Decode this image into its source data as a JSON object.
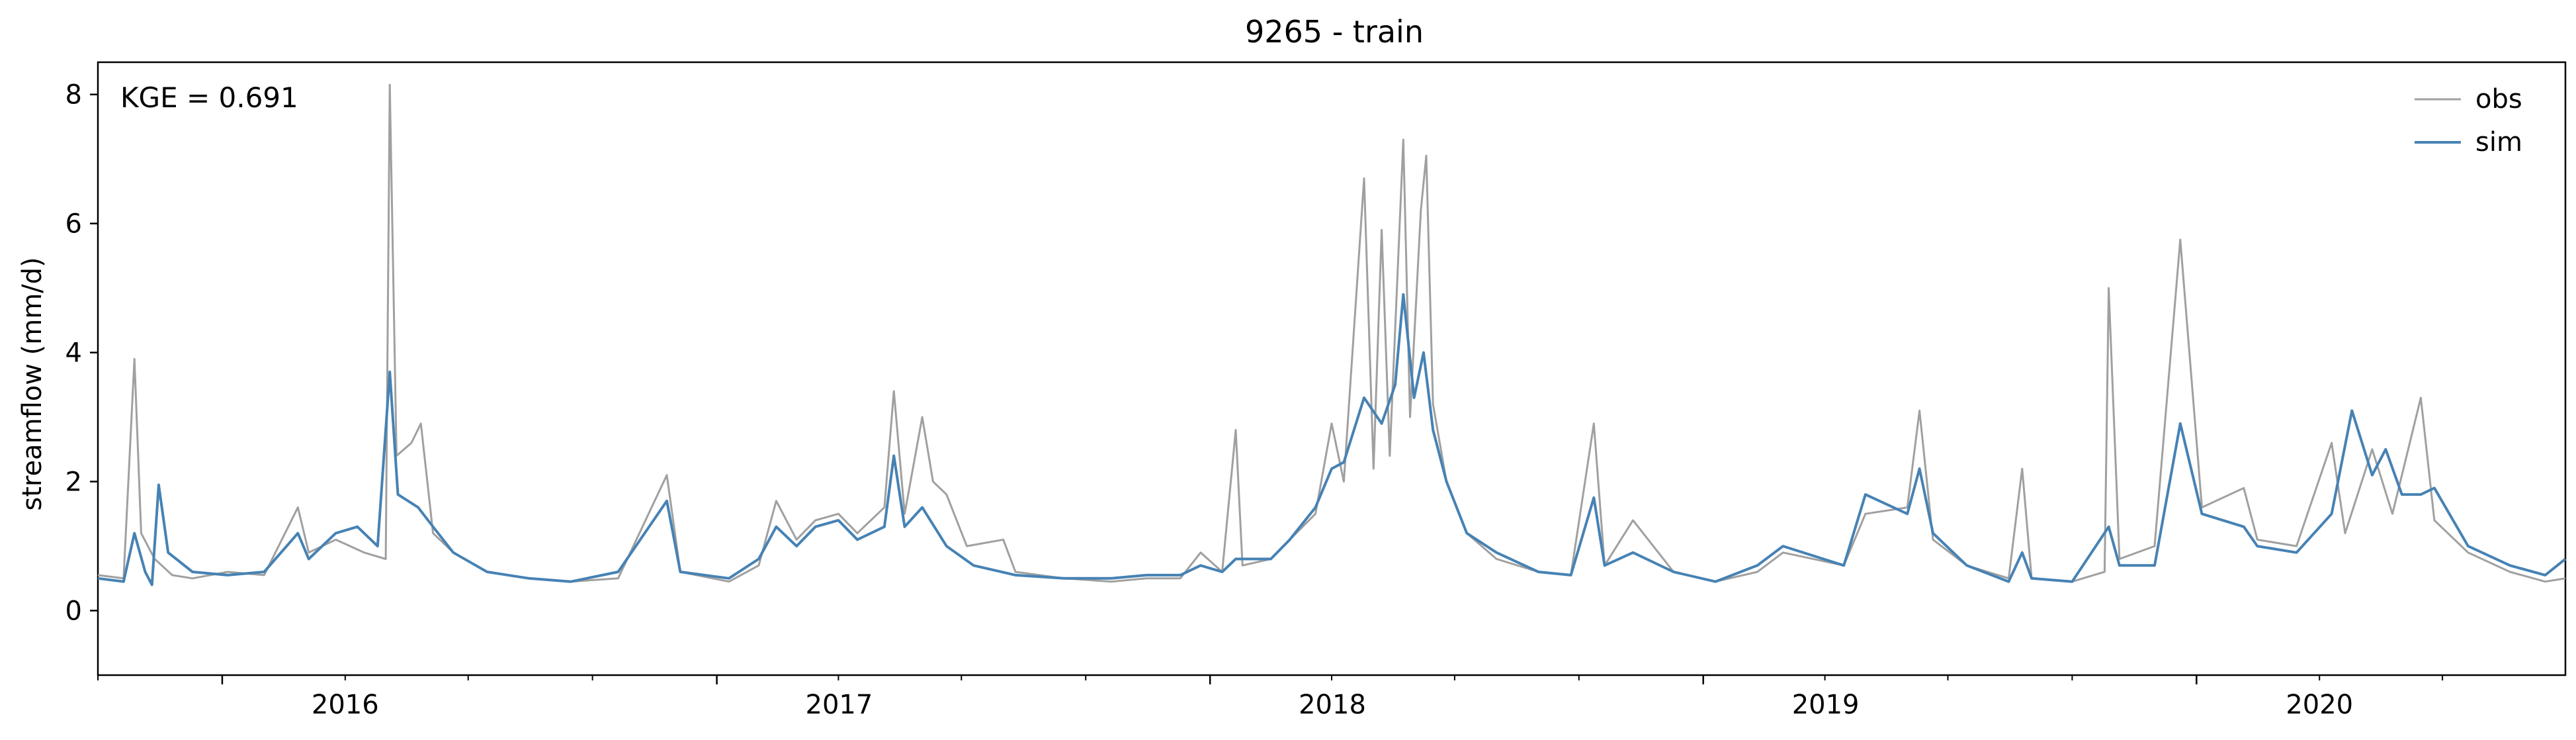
{
  "chart_data": {
    "type": "line",
    "title": "9265 - train",
    "xlabel": "",
    "ylabel": "streamflow (mm/d)",
    "annotation": "KGE = 0.691",
    "x_ticks": [
      "2016",
      "2017",
      "2018",
      "2019",
      "2020"
    ],
    "y_ticks": [
      "0",
      "2",
      "4",
      "6",
      "8"
    ],
    "xlim": [
      "2015-10-01",
      "2020-09-30"
    ],
    "ylim": [
      -1.0,
      8.5
    ],
    "grid": false,
    "legend_position": "top-right",
    "series": [
      {
        "name": "obs",
        "color": "#a0a0a0",
        "points": [
          [
            "2015-10-01",
            0.55
          ],
          [
            "2015-10-20",
            0.5
          ],
          [
            "2015-10-28",
            3.9
          ],
          [
            "2015-11-02",
            1.2
          ],
          [
            "2015-11-12",
            0.8
          ],
          [
            "2015-11-25",
            0.55
          ],
          [
            "2015-12-10",
            0.5
          ],
          [
            "2016-01-05",
            0.6
          ],
          [
            "2016-02-01",
            0.55
          ],
          [
            "2016-02-26",
            1.6
          ],
          [
            "2016-03-05",
            0.9
          ],
          [
            "2016-03-25",
            1.1
          ],
          [
            "2016-04-15",
            0.9
          ],
          [
            "2016-05-01",
            0.8
          ],
          [
            "2016-05-04",
            8.15
          ],
          [
            "2016-05-09",
            2.4
          ],
          [
            "2016-05-20",
            2.6
          ],
          [
            "2016-05-27",
            2.9
          ],
          [
            "2016-06-05",
            1.2
          ],
          [
            "2016-06-20",
            0.9
          ],
          [
            "2016-07-15",
            0.6
          ],
          [
            "2016-08-15",
            0.5
          ],
          [
            "2016-09-15",
            0.45
          ],
          [
            "2016-10-20",
            0.5
          ],
          [
            "2016-11-25",
            2.1
          ],
          [
            "2016-12-05",
            0.6
          ],
          [
            "2017-01-10",
            0.45
          ],
          [
            "2017-02-01",
            0.7
          ],
          [
            "2017-02-14",
            1.7
          ],
          [
            "2017-03-01",
            1.1
          ],
          [
            "2017-03-15",
            1.4
          ],
          [
            "2017-04-01",
            1.5
          ],
          [
            "2017-04-15",
            1.2
          ],
          [
            "2017-05-05",
            1.6
          ],
          [
            "2017-05-12",
            3.4
          ],
          [
            "2017-05-20",
            1.5
          ],
          [
            "2017-06-02",
            3.0
          ],
          [
            "2017-06-10",
            2.0
          ],
          [
            "2017-06-20",
            1.8
          ],
          [
            "2017-07-05",
            1.0
          ],
          [
            "2017-08-01",
            1.1
          ],
          [
            "2017-08-10",
            0.6
          ],
          [
            "2017-09-15",
            0.5
          ],
          [
            "2017-10-20",
            0.45
          ],
          [
            "2017-11-15",
            0.5
          ],
          [
            "2017-12-10",
            0.5
          ],
          [
            "2017-12-25",
            0.9
          ],
          [
            "2018-01-10",
            0.6
          ],
          [
            "2018-01-20",
            2.8
          ],
          [
            "2018-01-25",
            0.7
          ],
          [
            "2018-02-15",
            0.8
          ],
          [
            "2018-03-01",
            1.1
          ],
          [
            "2018-03-20",
            1.5
          ],
          [
            "2018-04-01",
            2.9
          ],
          [
            "2018-04-10",
            2.0
          ],
          [
            "2018-04-25",
            6.7
          ],
          [
            "2018-05-02",
            2.2
          ],
          [
            "2018-05-08",
            5.9
          ],
          [
            "2018-05-14",
            2.4
          ],
          [
            "2018-05-24",
            7.3
          ],
          [
            "2018-05-29",
            3.0
          ],
          [
            "2018-06-06",
            6.2
          ],
          [
            "2018-06-10",
            7.05
          ],
          [
            "2018-06-15",
            3.2
          ],
          [
            "2018-06-25",
            2.0
          ],
          [
            "2018-07-10",
            1.2
          ],
          [
            "2018-08-01",
            0.8
          ],
          [
            "2018-09-01",
            0.6
          ],
          [
            "2018-09-25",
            0.55
          ],
          [
            "2018-10-12",
            2.9
          ],
          [
            "2018-10-20",
            0.7
          ],
          [
            "2018-11-10",
            1.4
          ],
          [
            "2018-12-10",
            0.6
          ],
          [
            "2019-01-10",
            0.45
          ],
          [
            "2019-02-10",
            0.6
          ],
          [
            "2019-03-01",
            0.9
          ],
          [
            "2019-04-15",
            0.7
          ],
          [
            "2019-05-01",
            1.5
          ],
          [
            "2019-06-01",
            1.6
          ],
          [
            "2019-06-10",
            3.1
          ],
          [
            "2019-06-20",
            1.1
          ],
          [
            "2019-07-15",
            0.7
          ],
          [
            "2019-08-15",
            0.5
          ],
          [
            "2019-08-25",
            2.2
          ],
          [
            "2019-09-01",
            0.5
          ],
          [
            "2019-10-01",
            0.45
          ],
          [
            "2019-10-25",
            0.6
          ],
          [
            "2019-10-28",
            5.0
          ],
          [
            "2019-11-05",
            0.8
          ],
          [
            "2019-12-01",
            1.0
          ],
          [
            "2019-12-20",
            5.75
          ],
          [
            "2020-01-05",
            1.6
          ],
          [
            "2020-02-05",
            1.9
          ],
          [
            "2020-02-15",
            1.1
          ],
          [
            "2020-03-15",
            1.0
          ],
          [
            "2020-04-10",
            2.6
          ],
          [
            "2020-04-20",
            1.2
          ],
          [
            "2020-05-10",
            2.5
          ],
          [
            "2020-05-25",
            1.5
          ],
          [
            "2020-06-15",
            3.3
          ],
          [
            "2020-06-25",
            1.4
          ],
          [
            "2020-07-20",
            0.9
          ],
          [
            "2020-08-20",
            0.6
          ],
          [
            "2020-09-15",
            0.45
          ],
          [
            "2020-09-30",
            0.5
          ]
        ]
      },
      {
        "name": "sim",
        "color": "#4682b4",
        "points": [
          [
            "2015-10-01",
            0.5
          ],
          [
            "2015-10-20",
            0.45
          ],
          [
            "2015-10-28",
            1.2
          ],
          [
            "2015-11-05",
            0.6
          ],
          [
            "2015-11-10",
            0.4
          ],
          [
            "2015-11-15",
            1.95
          ],
          [
            "2015-11-22",
            0.9
          ],
          [
            "2015-12-10",
            0.6
          ],
          [
            "2016-01-05",
            0.55
          ],
          [
            "2016-02-01",
            0.6
          ],
          [
            "2016-02-26",
            1.2
          ],
          [
            "2016-03-05",
            0.8
          ],
          [
            "2016-03-25",
            1.2
          ],
          [
            "2016-04-10",
            1.3
          ],
          [
            "2016-04-25",
            1.0
          ],
          [
            "2016-05-04",
            3.7
          ],
          [
            "2016-05-10",
            1.8
          ],
          [
            "2016-05-25",
            1.6
          ],
          [
            "2016-06-05",
            1.3
          ],
          [
            "2016-06-20",
            0.9
          ],
          [
            "2016-07-15",
            0.6
          ],
          [
            "2016-08-15",
            0.5
          ],
          [
            "2016-09-15",
            0.45
          ],
          [
            "2016-10-20",
            0.6
          ],
          [
            "2016-11-25",
            1.7
          ],
          [
            "2016-12-05",
            0.6
          ],
          [
            "2017-01-10",
            0.5
          ],
          [
            "2017-02-01",
            0.8
          ],
          [
            "2017-02-14",
            1.3
          ],
          [
            "2017-03-01",
            1.0
          ],
          [
            "2017-03-15",
            1.3
          ],
          [
            "2017-04-01",
            1.4
          ],
          [
            "2017-04-15",
            1.1
          ],
          [
            "2017-05-05",
            1.3
          ],
          [
            "2017-05-12",
            2.4
          ],
          [
            "2017-05-20",
            1.3
          ],
          [
            "2017-06-02",
            1.6
          ],
          [
            "2017-06-20",
            1.0
          ],
          [
            "2017-07-10",
            0.7
          ],
          [
            "2017-08-10",
            0.55
          ],
          [
            "2017-09-15",
            0.5
          ],
          [
            "2017-10-20",
            0.5
          ],
          [
            "2017-11-15",
            0.55
          ],
          [
            "2017-12-10",
            0.55
          ],
          [
            "2017-12-25",
            0.7
          ],
          [
            "2018-01-10",
            0.6
          ],
          [
            "2018-01-20",
            0.8
          ],
          [
            "2018-02-15",
            0.8
          ],
          [
            "2018-03-01",
            1.1
          ],
          [
            "2018-03-20",
            1.6
          ],
          [
            "2018-04-01",
            2.2
          ],
          [
            "2018-04-10",
            2.3
          ],
          [
            "2018-04-25",
            3.3
          ],
          [
            "2018-05-08",
            2.9
          ],
          [
            "2018-05-18",
            3.5
          ],
          [
            "2018-05-24",
            4.9
          ],
          [
            "2018-06-01",
            3.3
          ],
          [
            "2018-06-08",
            4.0
          ],
          [
            "2018-06-15",
            2.8
          ],
          [
            "2018-06-25",
            2.0
          ],
          [
            "2018-07-10",
            1.2
          ],
          [
            "2018-08-01",
            0.9
          ],
          [
            "2018-09-01",
            0.6
          ],
          [
            "2018-09-25",
            0.55
          ],
          [
            "2018-10-12",
            1.75
          ],
          [
            "2018-10-20",
            0.7
          ],
          [
            "2018-11-10",
            0.9
          ],
          [
            "2018-12-10",
            0.6
          ],
          [
            "2019-01-10",
            0.45
          ],
          [
            "2019-02-10",
            0.7
          ],
          [
            "2019-03-01",
            1.0
          ],
          [
            "2019-04-15",
            0.7
          ],
          [
            "2019-05-01",
            1.8
          ],
          [
            "2019-06-01",
            1.5
          ],
          [
            "2019-06-10",
            2.2
          ],
          [
            "2019-06-20",
            1.2
          ],
          [
            "2019-07-15",
            0.7
          ],
          [
            "2019-08-15",
            0.45
          ],
          [
            "2019-08-25",
            0.9
          ],
          [
            "2019-09-01",
            0.5
          ],
          [
            "2019-10-01",
            0.45
          ],
          [
            "2019-10-28",
            1.3
          ],
          [
            "2019-11-05",
            0.7
          ],
          [
            "2019-12-01",
            0.7
          ],
          [
            "2019-12-20",
            2.9
          ],
          [
            "2020-01-05",
            1.5
          ],
          [
            "2020-02-05",
            1.3
          ],
          [
            "2020-02-15",
            1.0
          ],
          [
            "2020-03-15",
            0.9
          ],
          [
            "2020-04-10",
            1.5
          ],
          [
            "2020-04-25",
            3.1
          ],
          [
            "2020-05-10",
            2.1
          ],
          [
            "2020-05-20",
            2.5
          ],
          [
            "2020-06-01",
            1.8
          ],
          [
            "2020-06-15",
            1.8
          ],
          [
            "2020-06-25",
            1.9
          ],
          [
            "2020-07-20",
            1.0
          ],
          [
            "2020-08-20",
            0.7
          ],
          [
            "2020-09-15",
            0.55
          ],
          [
            "2020-09-30",
            0.8
          ]
        ]
      }
    ]
  }
}
